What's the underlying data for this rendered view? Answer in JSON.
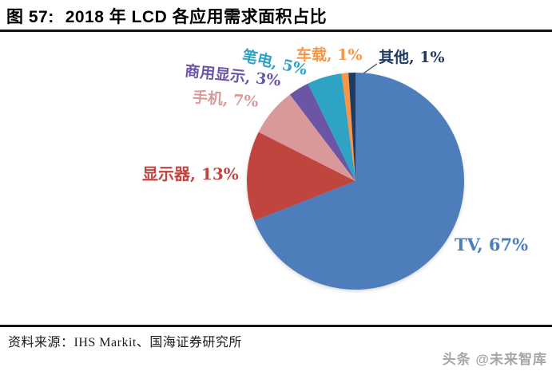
{
  "header": {
    "figure_label": "图 57:",
    "title": "2018 年 LCD 各应用需求面积占比"
  },
  "chart_data": {
    "type": "pie",
    "title": "2018 年 LCD 各应用需求面积占比",
    "unit": "percent",
    "start_angle_deg": 0,
    "direction": "clockwise",
    "legend_position": "none",
    "labels_shown_outside": true,
    "slices": [
      {
        "label": "TV",
        "value": 67,
        "display": "TV, 67%",
        "color": "#4D7EBB"
      },
      {
        "label": "显示器",
        "value": 13,
        "display": "显示器, 13%",
        "color": "#C0453F"
      },
      {
        "label": "手机",
        "value": 7,
        "display": "手机, 7%",
        "color": "#D9999B"
      },
      {
        "label": "商用显示",
        "value": 3,
        "display": "商用显示, 3%",
        "color": "#6C55A6"
      },
      {
        "label": "笔电",
        "value": 5,
        "display": "笔电, 5%",
        "color": "#2FA3C6"
      },
      {
        "label": "车载",
        "value": 1,
        "display": "车载, 1%",
        "color": "#F79646"
      },
      {
        "label": "其他",
        "value": 1,
        "display": "其他, 1%",
        "color": "#1F3A64"
      }
    ]
  },
  "footer": {
    "source_label": "资料来源：",
    "source_text": "IHS Markit、国海证券研究所",
    "watermark": "头条 @未来智库"
  }
}
